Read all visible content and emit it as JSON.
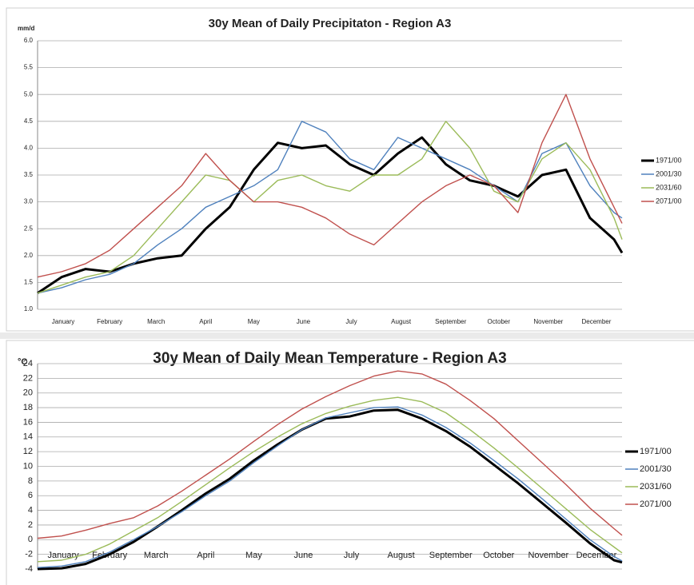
{
  "chart_data": [
    {
      "type": "line",
      "title": "30y Mean of Daily Precipitaton - Region A3",
      "ylabel": "mm/d",
      "x": [
        0,
        15,
        30,
        45,
        60,
        75,
        90,
        105,
        120,
        135,
        150,
        165,
        180,
        195,
        210,
        225,
        240,
        255,
        270,
        285,
        300,
        315,
        330,
        345,
        360,
        365
      ],
      "xlim": [
        0,
        365
      ],
      "xticks": [
        {
          "value": 16,
          "label": "January"
        },
        {
          "value": 45,
          "label": "February"
        },
        {
          "value": 74,
          "label": "March"
        },
        {
          "value": 105,
          "label": "April"
        },
        {
          "value": 135,
          "label": "May"
        },
        {
          "value": 166,
          "label": "June"
        },
        {
          "value": 196,
          "label": "July"
        },
        {
          "value": 227,
          "label": "August"
        },
        {
          "value": 258,
          "label": "September"
        },
        {
          "value": 288,
          "label": "October"
        },
        {
          "value": 319,
          "label": "November"
        },
        {
          "value": 349,
          "label": "December"
        }
      ],
      "ylim": [
        1,
        6
      ],
      "yticks": [
        {
          "value": 1,
          "label": "1.0"
        },
        {
          "value": 1.5,
          "label": "1.5"
        },
        {
          "value": 2,
          "label": "2.0"
        },
        {
          "value": 2.5,
          "label": "2.5"
        },
        {
          "value": 3,
          "label": "3.0"
        },
        {
          "value": 3.5,
          "label": "3.5"
        },
        {
          "value": 4,
          "label": "4.0"
        },
        {
          "value": 4.5,
          "label": "4.5"
        },
        {
          "value": 5,
          "label": "5.0"
        },
        {
          "value": 5.5,
          "label": "5.5"
        },
        {
          "value": 6,
          "label": "6.0"
        }
      ],
      "grid": true,
      "series": [
        {
          "name": "1971/00",
          "color": "#000000",
          "values": [
            1.3,
            1.6,
            1.75,
            1.7,
            1.85,
            1.95,
            2.0,
            2.5,
            2.9,
            3.6,
            4.1,
            4.0,
            4.05,
            3.7,
            3.5,
            3.9,
            4.2,
            3.7,
            3.4,
            3.3,
            3.1,
            3.5,
            3.6,
            2.7,
            2.3,
            2.05
          ]
        },
        {
          "name": "2001/30",
          "color": "#4f81bd",
          "values": [
            1.3,
            1.4,
            1.55,
            1.65,
            1.85,
            2.2,
            2.5,
            2.9,
            3.1,
            3.3,
            3.6,
            4.5,
            4.3,
            3.8,
            3.6,
            4.2,
            4.0,
            3.8,
            3.6,
            3.3,
            3.0,
            3.9,
            4.1,
            3.3,
            2.8,
            2.7
          ]
        },
        {
          "name": "2031/60",
          "color": "#9bbb59",
          "values": [
            1.3,
            1.45,
            1.6,
            1.7,
            2.0,
            2.5,
            3.0,
            3.5,
            3.4,
            3.0,
            3.4,
            3.5,
            3.3,
            3.2,
            3.5,
            3.5,
            3.8,
            4.5,
            4.0,
            3.2,
            3.0,
            3.8,
            4.1,
            3.6,
            2.7,
            2.3
          ]
        },
        {
          "name": "2071/00",
          "color": "#c0504d",
          "values": [
            1.6,
            1.7,
            1.85,
            2.1,
            2.5,
            2.9,
            3.3,
            3.9,
            3.4,
            3.0,
            3.0,
            2.9,
            2.7,
            2.4,
            2.2,
            2.6,
            3.0,
            3.3,
            3.5,
            3.3,
            2.8,
            4.1,
            5.0,
            3.8,
            2.9,
            2.6
          ]
        }
      ]
    },
    {
      "type": "line",
      "title": "30y Mean of Daily Mean Temperature - Region A3",
      "ylabel": "°C",
      "x": [
        0,
        15,
        30,
        45,
        60,
        75,
        90,
        105,
        120,
        135,
        150,
        165,
        180,
        195,
        210,
        225,
        240,
        255,
        270,
        285,
        300,
        315,
        330,
        345,
        360,
        365
      ],
      "xlim": [
        0,
        365
      ],
      "xticks": [
        {
          "value": 16,
          "label": "January"
        },
        {
          "value": 45,
          "label": "February"
        },
        {
          "value": 74,
          "label": "March"
        },
        {
          "value": 105,
          "label": "April"
        },
        {
          "value": 135,
          "label": "May"
        },
        {
          "value": 166,
          "label": "June"
        },
        {
          "value": 196,
          "label": "July"
        },
        {
          "value": 227,
          "label": "August"
        },
        {
          "value": 258,
          "label": "September"
        },
        {
          "value": 288,
          "label": "October"
        },
        {
          "value": 319,
          "label": "November"
        },
        {
          "value": 349,
          "label": "December"
        }
      ],
      "ylim": [
        -4,
        24
      ],
      "yticks": [
        -4,
        -2,
        0,
        2,
        4,
        6,
        8,
        10,
        12,
        14,
        16,
        18,
        20,
        22,
        24
      ],
      "grid": true,
      "series": [
        {
          "name": "1971/00",
          "color": "#000000",
          "values": [
            -4,
            -3.9,
            -3.3,
            -2,
            -0.3,
            1.8,
            4,
            6.3,
            8.3,
            10.8,
            13,
            15,
            16.5,
            16.8,
            17.6,
            17.7,
            16.5,
            14.8,
            12.7,
            10.2,
            7.7,
            5,
            2.3,
            -0.5,
            -2.8,
            -3.1
          ]
        },
        {
          "name": "2001/30",
          "color": "#4f81bd",
          "values": [
            -3.8,
            -3.6,
            -3,
            -1.7,
            0,
            1.8,
            3.8,
            6,
            8,
            10.5,
            12.8,
            15,
            16.6,
            17.3,
            18,
            18.1,
            17,
            15.3,
            13.2,
            10.8,
            8.3,
            5.6,
            2.8,
            0,
            -2.3,
            -2.9
          ]
        },
        {
          "name": "2031/60",
          "color": "#9bbb59",
          "values": [
            -3,
            -2.8,
            -2,
            -0.6,
            1.2,
            3,
            5.2,
            7.5,
            9.8,
            12,
            14,
            15.8,
            17.2,
            18.2,
            19,
            19.4,
            18.8,
            17.3,
            15,
            12.5,
            9.8,
            7,
            4.2,
            1.4,
            -1,
            -1.8
          ]
        },
        {
          "name": "2071/00",
          "color": "#c0504d",
          "values": [
            0.2,
            0.5,
            1.3,
            2.2,
            3,
            4.6,
            6.6,
            8.8,
            11,
            13.4,
            15.7,
            17.8,
            19.5,
            21,
            22.3,
            23,
            22.6,
            21.2,
            19,
            16.5,
            13.5,
            10.5,
            7.5,
            4.3,
            1.5,
            0.6
          ]
        }
      ]
    }
  ]
}
